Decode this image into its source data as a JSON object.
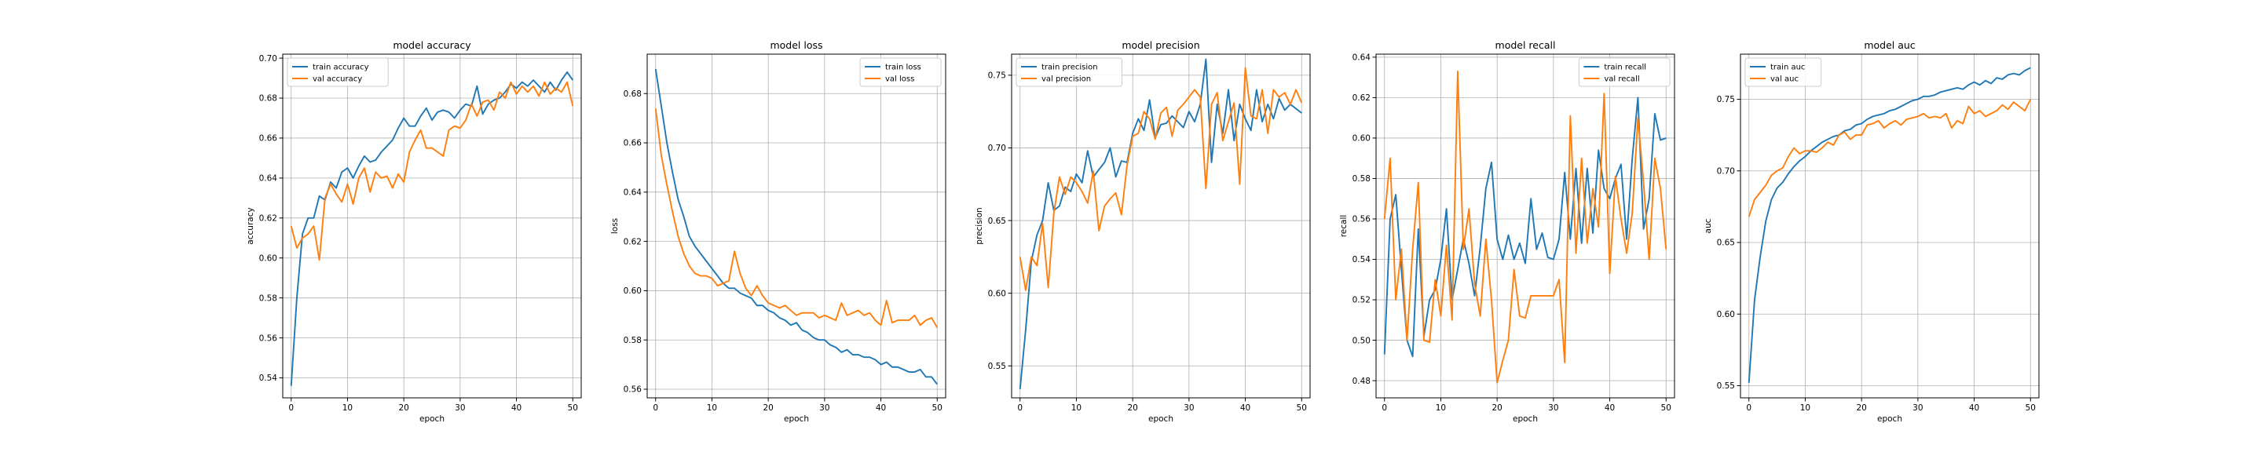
{
  "figure": {
    "background": "#ffffff"
  },
  "colors": {
    "train": "#1f77b4",
    "val": "#ff7f0e",
    "grid": "#b0b0b0"
  },
  "chart_data": [
    {
      "type": "line",
      "title": "model accuracy",
      "xlabel": "epoch",
      "ylabel": "accuracy",
      "xlim": [
        -1.5,
        51.5
      ],
      "ylim": [
        0.53,
        0.702
      ],
      "xticks": [
        0,
        10,
        20,
        30,
        40,
        50
      ],
      "xtick_labels": [
        "0",
        "10",
        "20",
        "30",
        "40",
        "50"
      ],
      "yticks": [
        0.54,
        0.56,
        0.58,
        0.6,
        0.62,
        0.64,
        0.66,
        0.68,
        0.7
      ],
      "ytick_labels": [
        "0.54",
        "0.56",
        "0.58",
        "0.60",
        "0.62",
        "0.64",
        "0.66",
        "0.68",
        "0.70"
      ],
      "grid": true,
      "legend_position": "upper-left",
      "series": [
        {
          "name": "train accuracy",
          "values": [
            0.536,
            0.58,
            0.612,
            0.62,
            0.62,
            0.631,
            0.629,
            0.638,
            0.635,
            0.643,
            0.645,
            0.64,
            0.646,
            0.651,
            0.648,
            0.649,
            0.653,
            0.656,
            0.659,
            0.665,
            0.67,
            0.666,
            0.666,
            0.671,
            0.675,
            0.669,
            0.673,
            0.674,
            0.673,
            0.67,
            0.674,
            0.677,
            0.676,
            0.686,
            0.672,
            0.677,
            0.679,
            0.68,
            0.683,
            0.687,
            0.685,
            0.688,
            0.686,
            0.689,
            0.686,
            0.683,
            0.688,
            0.684,
            0.689,
            0.693,
            0.689
          ]
        },
        {
          "name": "val accuracy",
          "values": [
            0.616,
            0.605,
            0.61,
            0.612,
            0.616,
            0.599,
            0.63,
            0.637,
            0.632,
            0.628,
            0.637,
            0.627,
            0.64,
            0.645,
            0.633,
            0.643,
            0.64,
            0.641,
            0.635,
            0.642,
            0.638,
            0.653,
            0.659,
            0.664,
            0.655,
            0.655,
            0.653,
            0.651,
            0.664,
            0.666,
            0.665,
            0.669,
            0.677,
            0.671,
            0.678,
            0.679,
            0.674,
            0.683,
            0.68,
            0.688,
            0.682,
            0.686,
            0.683,
            0.686,
            0.681,
            0.688,
            0.682,
            0.685,
            0.683,
            0.688,
            0.676
          ]
        }
      ]
    },
    {
      "type": "line",
      "title": "model loss",
      "xlabel": "epoch",
      "ylabel": "loss",
      "xlim": [
        -1.5,
        51.5
      ],
      "ylim": [
        0.5565,
        0.696
      ],
      "xticks": [
        0,
        10,
        20,
        30,
        40,
        50
      ],
      "xtick_labels": [
        "0",
        "10",
        "20",
        "30",
        "40",
        "50"
      ],
      "yticks": [
        0.56,
        0.58,
        0.6,
        0.62,
        0.64,
        0.66,
        0.68
      ],
      "ytick_labels": [
        "0.56",
        "0.58",
        "0.60",
        "0.62",
        "0.64",
        "0.66",
        "0.68"
      ],
      "grid": true,
      "legend_position": "upper-right",
      "series": [
        {
          "name": "train loss",
          "values": [
            0.69,
            0.675,
            0.66,
            0.648,
            0.637,
            0.63,
            0.622,
            0.618,
            0.615,
            0.612,
            0.609,
            0.606,
            0.603,
            0.601,
            0.601,
            0.599,
            0.598,
            0.597,
            0.594,
            0.594,
            0.592,
            0.591,
            0.589,
            0.588,
            0.586,
            0.587,
            0.584,
            0.583,
            0.581,
            0.58,
            0.58,
            0.578,
            0.577,
            0.575,
            0.576,
            0.574,
            0.574,
            0.573,
            0.573,
            0.572,
            0.57,
            0.571,
            0.569,
            0.569,
            0.568,
            0.567,
            0.567,
            0.568,
            0.565,
            0.565,
            0.562
          ]
        },
        {
          "name": "val loss",
          "values": [
            0.674,
            0.655,
            0.643,
            0.632,
            0.622,
            0.615,
            0.61,
            0.607,
            0.606,
            0.606,
            0.605,
            0.602,
            0.603,
            0.604,
            0.616,
            0.607,
            0.601,
            0.598,
            0.602,
            0.598,
            0.595,
            0.594,
            0.593,
            0.594,
            0.592,
            0.59,
            0.591,
            0.591,
            0.591,
            0.589,
            0.59,
            0.589,
            0.588,
            0.595,
            0.59,
            0.591,
            0.592,
            0.59,
            0.591,
            0.588,
            0.586,
            0.596,
            0.587,
            0.588,
            0.588,
            0.588,
            0.59,
            0.586,
            0.588,
            0.589,
            0.585
          ]
        }
      ]
    },
    {
      "type": "line",
      "title": "model precision",
      "xlabel": "epoch",
      "ylabel": "precision",
      "xlim": [
        -1.5,
        51.5
      ],
      "ylim": [
        0.528,
        0.7645
      ],
      "xticks": [
        0,
        10,
        20,
        30,
        40,
        50
      ],
      "xtick_labels": [
        "0",
        "10",
        "20",
        "30",
        "40",
        "50"
      ],
      "yticks": [
        0.55,
        0.6,
        0.65,
        0.7,
        0.75
      ],
      "ytick_labels": [
        "0.55",
        "0.60",
        "0.65",
        "0.70",
        "0.75"
      ],
      "grid": true,
      "legend_position": "upper-left",
      "series": [
        {
          "name": "train precision",
          "values": [
            0.534,
            0.575,
            0.622,
            0.64,
            0.65,
            0.676,
            0.657,
            0.66,
            0.673,
            0.67,
            0.682,
            0.676,
            0.698,
            0.68,
            0.685,
            0.69,
            0.7,
            0.68,
            0.691,
            0.69,
            0.71,
            0.72,
            0.712,
            0.733,
            0.707,
            0.716,
            0.717,
            0.722,
            0.718,
            0.714,
            0.725,
            0.718,
            0.73,
            0.761,
            0.69,
            0.73,
            0.71,
            0.74,
            0.705,
            0.73,
            0.72,
            0.712,
            0.74,
            0.718,
            0.73,
            0.72,
            0.734,
            0.726,
            0.73,
            0.727,
            0.724
          ]
        },
        {
          "name": "val precision",
          "values": [
            0.625,
            0.602,
            0.625,
            0.619,
            0.648,
            0.604,
            0.655,
            0.68,
            0.668,
            0.68,
            0.676,
            0.67,
            0.662,
            0.684,
            0.643,
            0.66,
            0.665,
            0.669,
            0.654,
            0.688,
            0.708,
            0.71,
            0.725,
            0.72,
            0.706,
            0.724,
            0.728,
            0.708,
            0.726,
            0.73,
            0.735,
            0.74,
            0.735,
            0.672,
            0.73,
            0.738,
            0.705,
            0.718,
            0.731,
            0.675,
            0.755,
            0.722,
            0.72,
            0.74,
            0.71,
            0.74,
            0.735,
            0.738,
            0.73,
            0.74,
            0.731
          ]
        }
      ]
    },
    {
      "type": "line",
      "title": "model recall",
      "xlabel": "epoch",
      "ylabel": "recall",
      "xlim": [
        -1.5,
        51.5
      ],
      "ylim": [
        0.4715,
        0.6415
      ],
      "xticks": [
        0,
        10,
        20,
        30,
        40,
        50
      ],
      "xtick_labels": [
        "0",
        "10",
        "20",
        "30",
        "40",
        "50"
      ],
      "yticks": [
        0.48,
        0.5,
        0.52,
        0.54,
        0.56,
        0.58,
        0.6,
        0.62,
        0.64
      ],
      "ytick_labels": [
        "0.48",
        "0.50",
        "0.52",
        "0.54",
        "0.56",
        "0.58",
        "0.60",
        "0.62",
        "0.64"
      ],
      "grid": true,
      "legend_position": "upper-right",
      "series": [
        {
          "name": "train recall",
          "values": [
            0.493,
            0.56,
            0.572,
            0.535,
            0.5,
            0.492,
            0.555,
            0.502,
            0.52,
            0.525,
            0.54,
            0.565,
            0.52,
            0.535,
            0.55,
            0.538,
            0.522,
            0.546,
            0.575,
            0.588,
            0.55,
            0.54,
            0.552,
            0.54,
            0.548,
            0.538,
            0.57,
            0.545,
            0.553,
            0.541,
            0.54,
            0.55,
            0.583,
            0.55,
            0.585,
            0.548,
            0.585,
            0.553,
            0.594,
            0.575,
            0.57,
            0.58,
            0.587,
            0.55,
            0.59,
            0.62,
            0.555,
            0.57,
            0.612,
            0.599,
            0.6
          ]
        },
        {
          "name": "val recall",
          "values": [
            0.56,
            0.59,
            0.52,
            0.545,
            0.5,
            0.545,
            0.578,
            0.5,
            0.499,
            0.53,
            0.512,
            0.547,
            0.51,
            0.633,
            0.545,
            0.565,
            0.528,
            0.512,
            0.55,
            0.52,
            0.479,
            0.49,
            0.5,
            0.535,
            0.512,
            0.511,
            0.522,
            0.522,
            0.522,
            0.522,
            0.522,
            0.53,
            0.489,
            0.611,
            0.543,
            0.59,
            0.548,
            0.575,
            0.556,
            0.622,
            0.533,
            0.581,
            0.56,
            0.543,
            0.563,
            0.61,
            0.578,
            0.54,
            0.59,
            0.575,
            0.545
          ]
        }
      ]
    },
    {
      "type": "line",
      "title": "model auc",
      "xlabel": "epoch",
      "ylabel": "auc",
      "xlim": [
        -1.5,
        51.5
      ],
      "ylim": [
        0.5415,
        0.7815
      ],
      "xticks": [
        0,
        10,
        20,
        30,
        40,
        50
      ],
      "xtick_labels": [
        "0",
        "10",
        "20",
        "30",
        "40",
        "50"
      ],
      "yticks": [
        0.55,
        0.6,
        0.65,
        0.7,
        0.75
      ],
      "ytick_labels": [
        "0.55",
        "0.60",
        "0.65",
        "0.70",
        "0.75"
      ],
      "grid": true,
      "legend_position": "upper-left",
      "series": [
        {
          "name": "train auc",
          "values": [
            0.552,
            0.61,
            0.64,
            0.665,
            0.68,
            0.688,
            0.692,
            0.698,
            0.703,
            0.707,
            0.71,
            0.714,
            0.717,
            0.72,
            0.722,
            0.724,
            0.725,
            0.728,
            0.729,
            0.732,
            0.733,
            0.736,
            0.738,
            0.739,
            0.74,
            0.742,
            0.743,
            0.745,
            0.747,
            0.749,
            0.75,
            0.752,
            0.752,
            0.753,
            0.755,
            0.756,
            0.757,
            0.758,
            0.757,
            0.76,
            0.762,
            0.76,
            0.763,
            0.761,
            0.765,
            0.764,
            0.767,
            0.768,
            0.767,
            0.77,
            0.772
          ]
        },
        {
          "name": "val auc",
          "values": [
            0.668,
            0.68,
            0.685,
            0.69,
            0.697,
            0.7,
            0.702,
            0.71,
            0.716,
            0.712,
            0.714,
            0.714,
            0.713,
            0.716,
            0.72,
            0.718,
            0.725,
            0.727,
            0.722,
            0.725,
            0.725,
            0.732,
            0.733,
            0.735,
            0.73,
            0.733,
            0.735,
            0.732,
            0.736,
            0.737,
            0.738,
            0.74,
            0.737,
            0.738,
            0.737,
            0.74,
            0.73,
            0.735,
            0.733,
            0.745,
            0.74,
            0.742,
            0.738,
            0.74,
            0.742,
            0.746,
            0.743,
            0.748,
            0.745,
            0.742,
            0.75
          ]
        }
      ]
    }
  ]
}
